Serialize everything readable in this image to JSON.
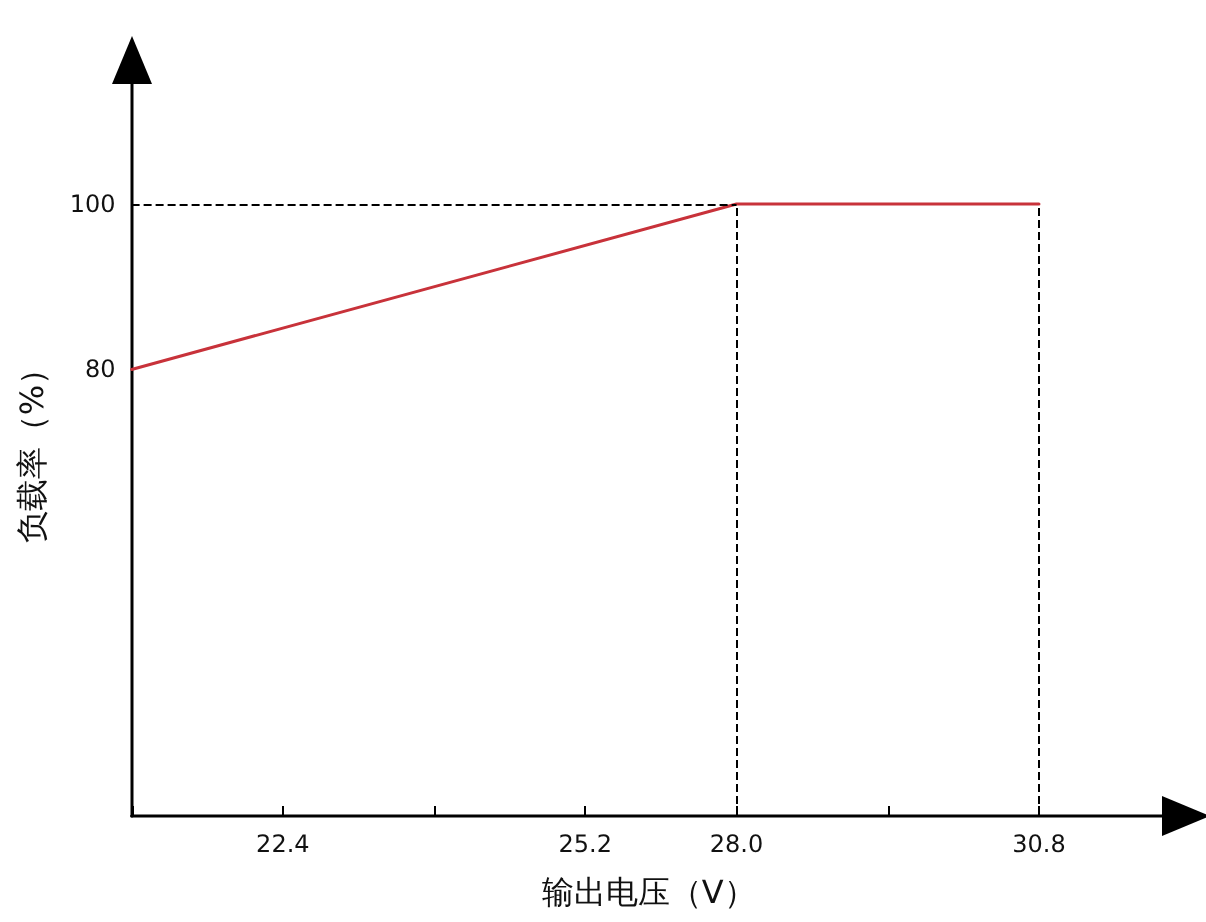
{
  "chart_data": {
    "type": "line",
    "xlabel": "输出电压（V）",
    "ylabel": "负载率（%）",
    "categories": [
      null,
      "22.4",
      null,
      "25.2",
      "28.0",
      null,
      "30.8"
    ],
    "series": [
      {
        "color": "#c8323a",
        "values": [
          80,
          null,
          null,
          null,
          100,
          null,
          100
        ]
      }
    ],
    "ylim": [
      26,
      115
    ],
    "yticks": [
      80,
      100
    ],
    "grid": false,
    "marker": "none",
    "line_style": "solid",
    "ref_lines": [
      {
        "axis": "y",
        "value": 100,
        "line_style": "dashed",
        "color": "#000000"
      },
      {
        "axis": "x",
        "value": "28.0",
        "line_style": "dashed",
        "color": "#000000"
      },
      {
        "axis": "x",
        "value": "30.8",
        "line_style": "dashed",
        "color": "#000000"
      }
    ]
  }
}
